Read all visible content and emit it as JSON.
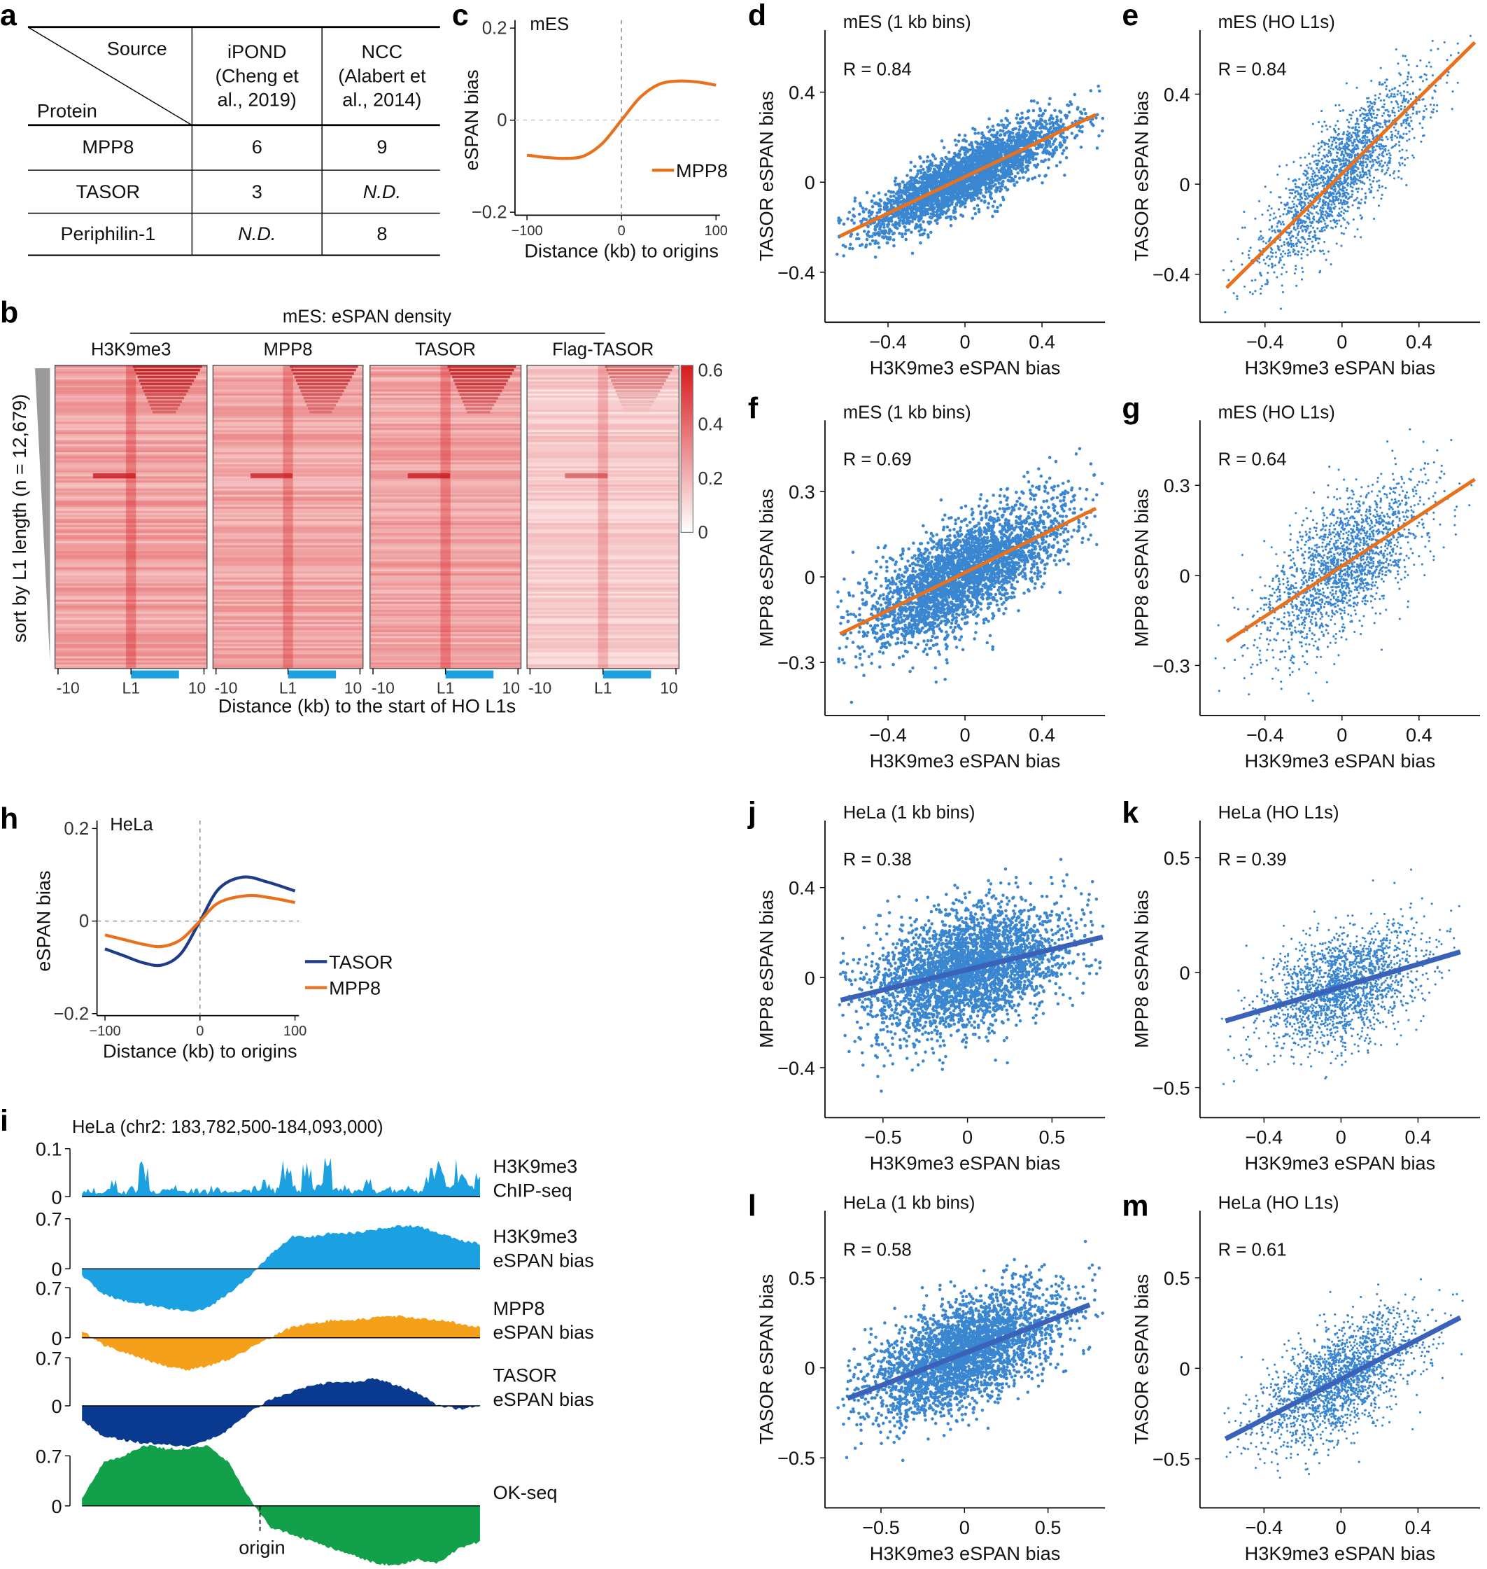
{
  "colors": {
    "orange": "#E8711E",
    "navy": "#1F3C88",
    "scatter_blue": "#3A86D0",
    "fit_blue": "#3A62B8",
    "heat_red": "#D7191C",
    "l1_bar": "#1BA1E2",
    "chip_blue": "#1BA1E2",
    "mpp8_track": "#F5A01B",
    "tasor_track": "#0A3A8F",
    "okseq_green": "#12A04A"
  },
  "panel_letters": [
    "a",
    "b",
    "c",
    "d",
    "e",
    "f",
    "g",
    "h",
    "i",
    "j",
    "k",
    "l",
    "m"
  ],
  "table": {
    "id": "a",
    "corner_top": "Source",
    "corner_bottom": "Protein",
    "columns": [
      [
        "iPOND",
        "(Cheng et",
        "al., 2019)"
      ],
      [
        "NCC",
        "(Alabert et",
        "al., 2014)"
      ]
    ],
    "rows": [
      [
        "MPP8",
        "6",
        "9"
      ],
      [
        "TASOR",
        "3",
        "N.D."
      ],
      [
        "Periphilin-1",
        "N.D.",
        "8"
      ]
    ]
  },
  "chart_data": [
    {
      "id": "b",
      "type": "heatmap",
      "title": "mES: eSPAN density",
      "panels": [
        "H3K9me3",
        "MPP8",
        "TASOR",
        "Flag-TASOR"
      ],
      "ylabel": "sort by L1 length (n = 12,679)",
      "xlabel": "Distance (kb) to the start of HO L1s",
      "xticks": [
        "-10",
        "L1",
        "10"
      ],
      "colorbar": {
        "range": [
          0,
          0.6
        ],
        "ticks": [
          "0",
          "0.2",
          "0.4",
          "0.6"
        ]
      }
    },
    {
      "id": "c",
      "type": "line",
      "title": "mES",
      "xlabel": "Distance (kb) to origins",
      "ylabel": "eSPAN bias",
      "xlim": [
        -100,
        100
      ],
      "ylim": [
        -0.2,
        0.2
      ],
      "xticks": [
        -100,
        0,
        100
      ],
      "yticks": [
        -0.2,
        0,
        0.2
      ],
      "legend": "right",
      "series": [
        {
          "name": "MPP8",
          "color": "#E8711E",
          "x": [
            -100,
            -80,
            -60,
            -40,
            -20,
            0,
            20,
            40,
            60,
            80,
            100
          ],
          "y": [
            -0.076,
            -0.081,
            -0.083,
            -0.078,
            -0.05,
            0,
            0.05,
            0.078,
            0.085,
            0.083,
            0.076
          ]
        }
      ]
    },
    {
      "id": "d",
      "type": "scatter",
      "title": "mES (1 kb bins)",
      "r_label": "R = 0.84",
      "r": 0.84,
      "xlabel": "H3K9me3 eSPAN bias",
      "ylabel": "TASOR eSPAN bias",
      "xticks": [
        -0.4,
        0,
        0.4
      ],
      "yticks": [
        -0.4,
        0,
        0.4
      ],
      "fit": {
        "x": [
          -0.65,
          0.68
        ],
        "y": [
          -0.24,
          0.3
        ],
        "color": "#E8711E"
      },
      "density": "dense"
    },
    {
      "id": "e",
      "type": "scatter",
      "title": "mES (HO L1s)",
      "r_label": "R = 0.84",
      "r": 0.84,
      "xlabel": "H3K9me3 eSPAN bias",
      "ylabel": "TASOR eSPAN bias",
      "xticks": [
        -0.4,
        0,
        0.4
      ],
      "yticks": [
        -0.4,
        0,
        0.4
      ],
      "fit": {
        "x": [
          -0.6,
          0.69
        ],
        "y": [
          -0.46,
          0.63
        ],
        "color": "#E8711E"
      },
      "density": "sparse"
    },
    {
      "id": "f",
      "type": "scatter",
      "title": "mES (1 kb bins)",
      "r_label": "R = 0.69",
      "r": 0.69,
      "xlabel": "H3K9me3 eSPAN bias",
      "ylabel": "MPP8 eSPAN bias",
      "xticks": [
        -0.4,
        0,
        0.4
      ],
      "yticks": [
        -0.3,
        0,
        0.3
      ],
      "fit": {
        "x": [
          -0.65,
          0.68
        ],
        "y": [
          -0.2,
          0.24
        ],
        "color": "#E8711E"
      },
      "density": "dense"
    },
    {
      "id": "g",
      "type": "scatter",
      "title": "mES (HO L1s)",
      "r_label": "R = 0.64",
      "r": 0.64,
      "xlabel": "H3K9me3 eSPAN bias",
      "ylabel": "MPP8 eSPAN bias",
      "xticks": [
        -0.4,
        0,
        0.4
      ],
      "yticks": [
        -0.3,
        0,
        0.3
      ],
      "fit": {
        "x": [
          -0.6,
          0.69
        ],
        "y": [
          -0.22,
          0.32
        ],
        "color": "#E8711E"
      },
      "density": "sparse"
    },
    {
      "id": "h",
      "type": "line",
      "title": "HeLa",
      "xlabel": "Distance (kb) to origins",
      "ylabel": "eSPAN bias",
      "xlim": [
        -100,
        100
      ],
      "ylim": [
        -0.2,
        0.2
      ],
      "xticks": [
        -100,
        0,
        100
      ],
      "yticks": [
        -0.2,
        0,
        0.2
      ],
      "legend": "right",
      "series": [
        {
          "name": "TASOR",
          "color": "#1F3C88",
          "x": [
            -100,
            -80,
            -60,
            -40,
            -20,
            0,
            20,
            45,
            70,
            100
          ],
          "y": [
            -0.06,
            -0.075,
            -0.09,
            -0.095,
            -0.07,
            0,
            0.07,
            0.095,
            0.085,
            0.065
          ]
        },
        {
          "name": "MPP8",
          "color": "#E8711E",
          "x": [
            -100,
            -80,
            -60,
            -40,
            -20,
            0,
            20,
            50,
            75,
            100
          ],
          "y": [
            -0.03,
            -0.04,
            -0.05,
            -0.055,
            -0.04,
            0,
            0.04,
            0.055,
            0.05,
            0.04
          ]
        }
      ]
    },
    {
      "id": "i",
      "type": "area",
      "title": "HeLa (chr2: 183,782,500-184,093,000)",
      "annotation": "origin",
      "tracks": [
        {
          "label": [
            "H3K9me3",
            "ChIP-seq"
          ],
          "yticks": [
            "0",
            "0.1"
          ],
          "ymax": 0.1,
          "color": "#1BA1E2",
          "values": [
            0.01,
            0.015,
            0.012,
            0.03,
            0.01,
            0.018,
            0.06,
            0.012,
            0.015,
            0.02,
            0.01,
            0.016,
            0.012,
            0.02,
            0.015,
            0.01,
            0.012,
            0.018,
            0.03,
            0.015,
            0.06,
            0.02,
            0.08,
            0.02,
            0.065,
            0.015,
            0.02,
            0.015,
            0.03,
            0.012,
            0.018,
            0.015,
            0.02,
            0.015,
            0.05,
            0.065,
            0.02,
            0.07,
            0.03,
            0.04
          ]
        },
        {
          "label": [
            "H3K9me3",
            "eSPAN bias"
          ],
          "yticks": [
            "0",
            "0.7"
          ],
          "ymax": 0.7,
          "color": "#1BA1E2",
          "values": [
            -0.1,
            -0.35,
            -0.45,
            -0.5,
            -0.55,
            -0.6,
            -0.55,
            -0.35,
            -0.1,
            0.2,
            0.45,
            0.45,
            0.5,
            0.5,
            0.55,
            0.6,
            0.6,
            0.5,
            0.4,
            0.35
          ]
        },
        {
          "label": [
            "MPP8",
            "eSPAN bias"
          ],
          "yticks": [
            "0",
            "0.7"
          ],
          "ymax": 0.7,
          "color": "#F5A01B",
          "values": [
            0.1,
            -0.1,
            -0.2,
            -0.3,
            -0.4,
            -0.45,
            -0.4,
            -0.3,
            -0.15,
            0.0,
            0.15,
            0.2,
            0.25,
            0.25,
            0.28,
            0.3,
            0.28,
            0.25,
            0.2,
            0.15
          ]
        },
        {
          "label": [
            "TASOR",
            "eSPAN bias"
          ],
          "yticks": [
            "0",
            "0.7"
          ],
          "ymax": 0.7,
          "color": "#0A3A8F",
          "values": [
            -0.2,
            -0.45,
            -0.5,
            -0.55,
            -0.55,
            -0.6,
            -0.5,
            -0.35,
            -0.1,
            0.1,
            0.2,
            0.3,
            0.35,
            0.35,
            0.4,
            0.3,
            0.2,
            0.0,
            -0.05,
            0.0
          ]
        },
        {
          "label": [
            "OK-seq"
          ],
          "yticks": [
            "0",
            "0.7"
          ],
          "ymax": 0.7,
          "color": "#12A04A",
          "values": [
            0.1,
            0.6,
            0.7,
            0.85,
            0.8,
            0.8,
            0.85,
            0.6,
            0.1,
            -0.3,
            -0.4,
            -0.5,
            -0.6,
            -0.7,
            -0.8,
            -0.84,
            -0.75,
            -0.8,
            -0.6,
            -0.5
          ]
        }
      ]
    },
    {
      "id": "j",
      "type": "scatter",
      "title": "HeLa (1 kb bins)",
      "r_label": "R = 0.38",
      "r": 0.38,
      "xlabel": "H3K9me3 eSPAN bias",
      "ylabel": "MPP8 eSPAN bias",
      "xticks": [
        -0.5,
        0,
        0.5
      ],
      "yticks": [
        -0.4,
        0,
        0.4
      ],
      "fit": {
        "x": [
          -0.75,
          0.8
        ],
        "y": [
          -0.1,
          0.18
        ],
        "color": "#3A62B8"
      },
      "density": "dense"
    },
    {
      "id": "k",
      "type": "scatter",
      "title": "HeLa (HO L1s)",
      "r_label": "R = 0.39",
      "r": 0.39,
      "xlabel": "H3K9me3 eSPAN bias",
      "ylabel": "MPP8 eSPAN bias",
      "xticks": [
        -0.4,
        0,
        0.4
      ],
      "yticks": [
        -0.5,
        0,
        0.5
      ],
      "fit": {
        "x": [
          -0.6,
          0.62
        ],
        "y": [
          -0.21,
          0.09
        ],
        "color": "#3A62B8"
      },
      "density": "sparse"
    },
    {
      "id": "l",
      "type": "scatter",
      "title": "HeLa (1 kb bins)",
      "r_label": "R = 0.58",
      "r": 0.58,
      "xlabel": "H3K9me3 eSPAN bias",
      "ylabel": "TASOR eSPAN bias",
      "xticks": [
        -0.5,
        0,
        0.5
      ],
      "yticks": [
        -0.5,
        0,
        0.5
      ],
      "fit": {
        "x": [
          -0.7,
          0.75
        ],
        "y": [
          -0.17,
          0.35
        ],
        "color": "#3A62B8"
      },
      "density": "dense"
    },
    {
      "id": "m",
      "type": "scatter",
      "title": "HeLa (HO L1s)",
      "r_label": "R = 0.61",
      "r": 0.61,
      "xlabel": "H3K9me3 eSPAN bias",
      "ylabel": "TASOR eSPAN bias",
      "xticks": [
        -0.4,
        0,
        0.4
      ],
      "yticks": [
        -0.5,
        0,
        0.5
      ],
      "fit": {
        "x": [
          -0.6,
          0.62
        ],
        "y": [
          -0.39,
          0.28
        ],
        "color": "#3A62B8"
      },
      "density": "sparse"
    }
  ]
}
